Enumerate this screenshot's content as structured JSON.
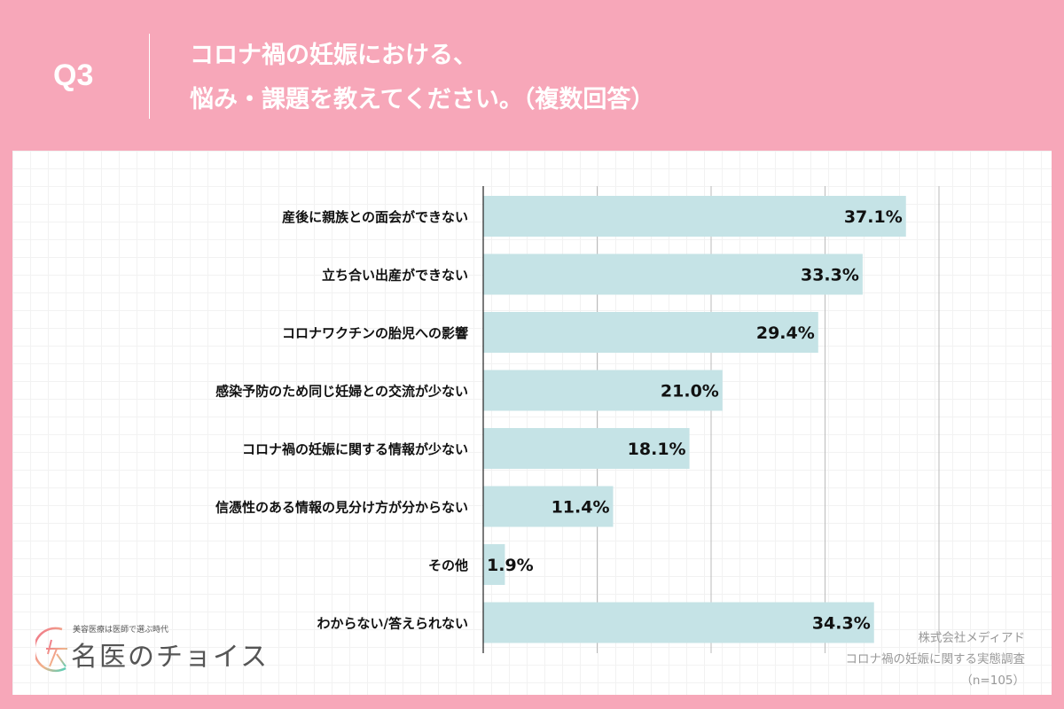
{
  "header": {
    "q": "Q3",
    "title_line1": "コロナ禍の妊娠における、",
    "title_line2": "悩み・課題を教えてください。（複数回答）"
  },
  "colors": {
    "background": "#f7a7b9",
    "bar": "#c5e3e6",
    "gridline": "#bbbbbb"
  },
  "chart_data": {
    "type": "bar",
    "orientation": "horizontal",
    "categories": [
      "産後に親族との面会ができない",
      "立ち合い出産ができない",
      "コロナワクチンの胎児への影響",
      "感染予防のため同じ妊婦との交流が少ない",
      "コロナ禍の妊娠に関する情報が少ない",
      "信憑性のある情報の見分け方が分からない",
      "その他",
      "わからない/答えられない"
    ],
    "values": [
      37.1,
      33.3,
      29.4,
      21.0,
      18.1,
      11.4,
      1.9,
      34.3
    ],
    "labels": [
      "37.1%",
      "33.3%",
      "29.4%",
      "21.0%",
      "18.1%",
      "11.4%",
      "1.9%",
      "34.3%"
    ],
    "xlim": [
      0,
      40
    ],
    "grid": true,
    "gridlines": [
      10,
      20,
      30,
      40
    ]
  },
  "source": {
    "line1": "株式会社メディアド",
    "line2": "コロナ禍の妊娠に関する実態調査",
    "line3": "（n=105）"
  },
  "logo": {
    "tagline": "美容医療は医師で選ぶ時代",
    "name": "名医のチョイス"
  }
}
